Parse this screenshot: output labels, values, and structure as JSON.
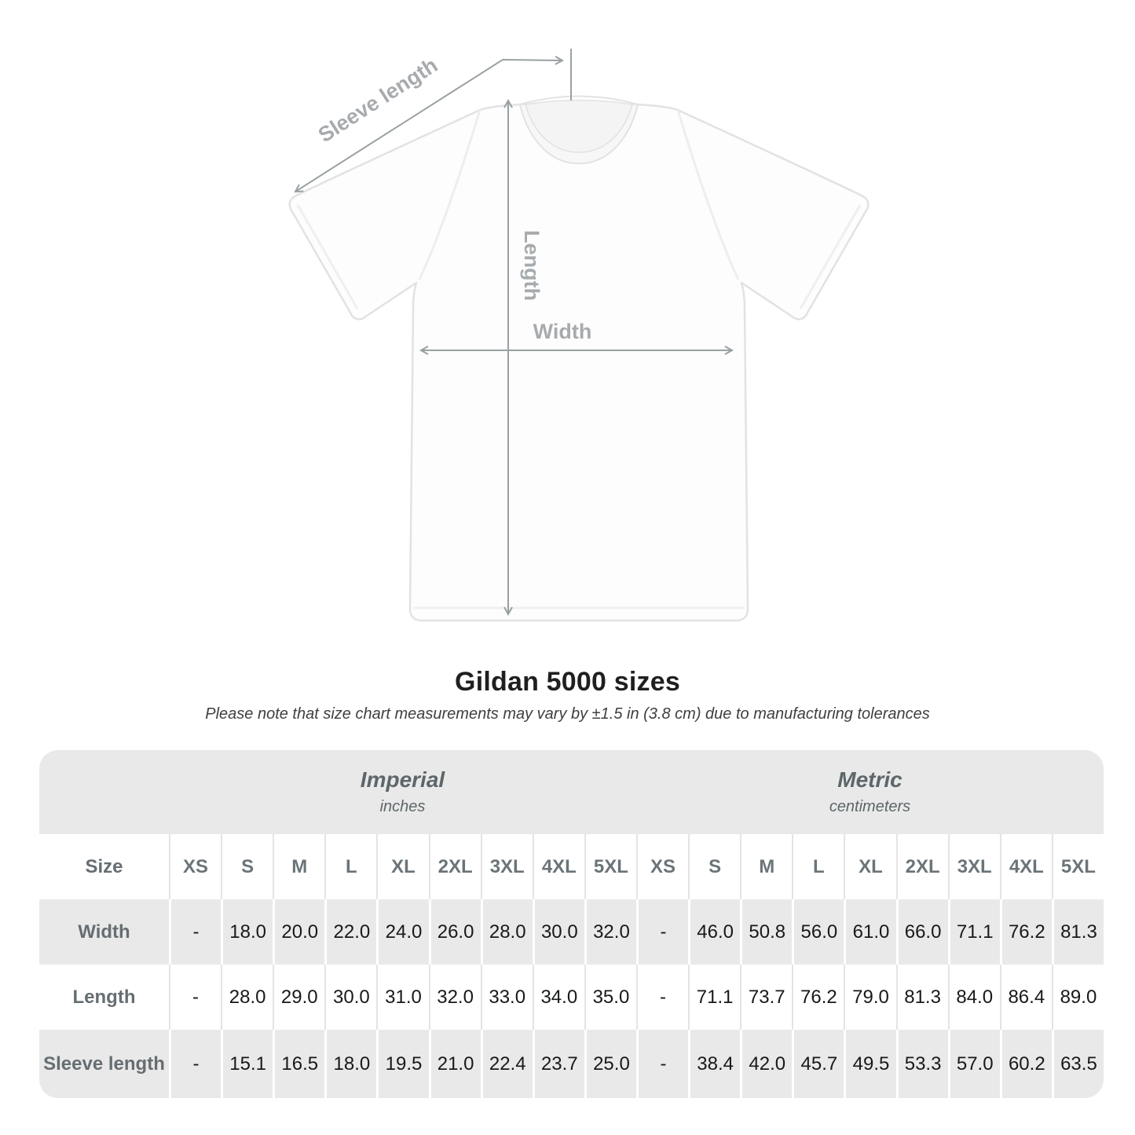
{
  "diagram": {
    "labels": {
      "sleeve_length": "Sleeve length",
      "length": "Length",
      "width": "Width"
    },
    "arrow_color": "#9aa0a2",
    "label_color": "#a7abae"
  },
  "title": "Gildan 5000 sizes",
  "subtitle": "Please note that size chart measurements may vary by ±1.5 in (3.8 cm) due to manufacturing tolerances",
  "table": {
    "corner_label": "Size",
    "unit_sections": [
      {
        "label": "Imperial",
        "sublabel": "inches"
      },
      {
        "label": "Metric",
        "sublabel": "centimeters"
      }
    ],
    "size_columns": [
      "XS",
      "S",
      "M",
      "L",
      "XL",
      "2XL",
      "3XL",
      "4XL",
      "5XL"
    ],
    "rows": [
      {
        "label": "Width",
        "imperial": [
          "-",
          "18.0",
          "20.0",
          "22.0",
          "24.0",
          "26.0",
          "28.0",
          "30.0",
          "32.0"
        ],
        "metric": [
          "-",
          "46.0",
          "50.8",
          "56.0",
          "61.0",
          "66.0",
          "71.1",
          "76.2",
          "81.3"
        ]
      },
      {
        "label": "Length",
        "imperial": [
          "-",
          "28.0",
          "29.0",
          "30.0",
          "31.0",
          "32.0",
          "33.0",
          "34.0",
          "35.0"
        ],
        "metric": [
          "-",
          "71.1",
          "73.7",
          "76.2",
          "79.0",
          "81.3",
          "84.0",
          "86.4",
          "89.0"
        ]
      },
      {
        "label": "Sleeve length",
        "imperial": [
          "-",
          "15.1",
          "16.5",
          "18.0",
          "19.5",
          "21.0",
          "22.4",
          "23.7",
          "25.0"
        ],
        "metric": [
          "-",
          "38.4",
          "42.0",
          "45.7",
          "49.5",
          "53.3",
          "57.0",
          "60.2",
          "63.5"
        ]
      }
    ],
    "colors": {
      "band_gray": "#e9e9e9",
      "divider_on_white": "#e4e4e4",
      "divider_on_gray": "#ffffff",
      "header_text": "#6b7478",
      "data_text": "#17191a"
    }
  },
  "chart_data": {
    "type": "table",
    "title": "Gildan 5000 sizes",
    "note": "Please note that size chart measurements may vary by ±1.5 in (3.8 cm) due to manufacturing tolerances",
    "sections": [
      "Imperial (inches)",
      "Metric (centimeters)"
    ],
    "columns": [
      "Size",
      "XS",
      "S",
      "M",
      "L",
      "XL",
      "2XL",
      "3XL",
      "4XL",
      "5XL",
      "XS",
      "S",
      "M",
      "L",
      "XL",
      "2XL",
      "3XL",
      "4XL",
      "5XL"
    ],
    "rows": [
      [
        "Width",
        "-",
        18.0,
        20.0,
        22.0,
        24.0,
        26.0,
        28.0,
        30.0,
        32.0,
        "-",
        46.0,
        50.8,
        56.0,
        61.0,
        66.0,
        71.1,
        76.2,
        81.3
      ],
      [
        "Length",
        "-",
        28.0,
        29.0,
        30.0,
        31.0,
        32.0,
        33.0,
        34.0,
        35.0,
        "-",
        71.1,
        73.7,
        76.2,
        79.0,
        81.3,
        84.0,
        86.4,
        89.0
      ],
      [
        "Sleeve length",
        "-",
        15.1,
        16.5,
        18.0,
        19.5,
        21.0,
        22.4,
        23.7,
        25.0,
        "-",
        38.4,
        42.0,
        45.7,
        49.5,
        53.3,
        57.0,
        60.2,
        63.5
      ]
    ]
  }
}
